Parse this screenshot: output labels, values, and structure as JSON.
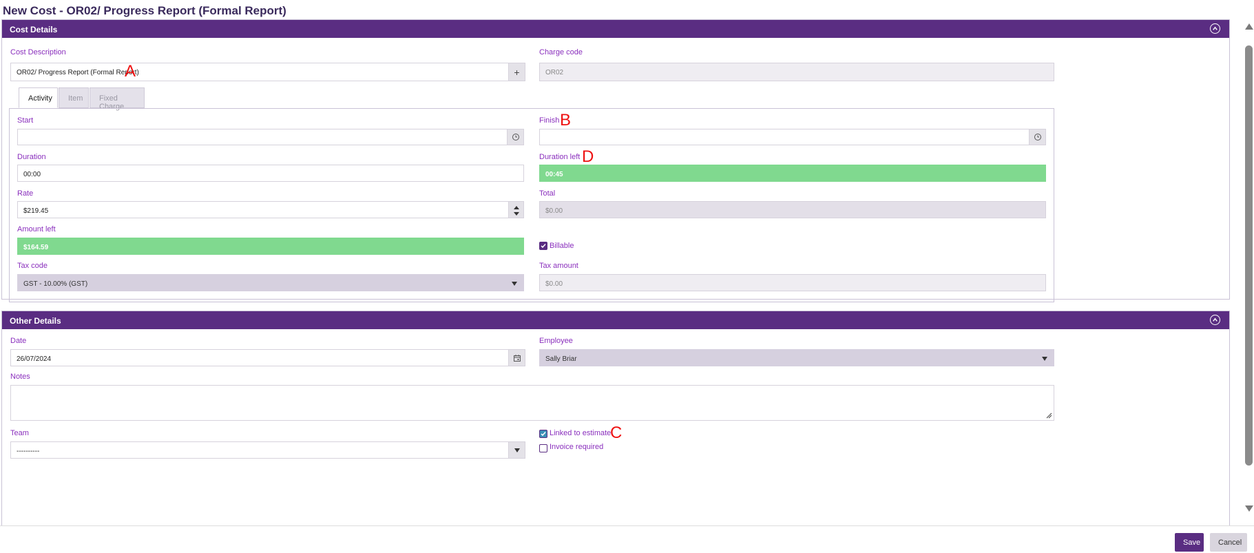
{
  "page": {
    "title": "New Cost - OR02/ Progress Report (Formal Report)"
  },
  "cost_details": {
    "header": "Cost Details",
    "cost_description": {
      "label": "Cost Description",
      "value": "OR02/ Progress Report (Formal Report)",
      "add_symbol": "+"
    },
    "charge_code": {
      "label": "Charge code",
      "value": "OR02"
    },
    "tabs": [
      {
        "label": "Activity"
      },
      {
        "label": "Item"
      },
      {
        "label": "Fixed Charge"
      }
    ],
    "start": {
      "label": "Start",
      "value": ""
    },
    "finish": {
      "label": "Finish",
      "value": ""
    },
    "duration": {
      "label": "Duration",
      "value": "00:00"
    },
    "duration_left": {
      "label": "Duration left",
      "value": "00:45"
    },
    "rate": {
      "label": "Rate",
      "value": "$219.45"
    },
    "total": {
      "label": "Total",
      "value": "$0.00"
    },
    "amount_left": {
      "label": "Amount left",
      "value": "$164.59"
    },
    "billable": {
      "label": "Billable",
      "checked": true
    },
    "tax_code": {
      "label": "Tax code",
      "value": "GST - 10.00% (GST)"
    },
    "tax_amount": {
      "label": "Tax amount",
      "value": "$0.00"
    }
  },
  "other_details": {
    "header": "Other Details",
    "date": {
      "label": "Date",
      "value": "26/07/2024"
    },
    "employee": {
      "label": "Employee",
      "value": "Sally Briar"
    },
    "notes": {
      "label": "Notes",
      "value": ""
    },
    "team": {
      "label": "Team",
      "value": "----------"
    },
    "linked_to_estimate": {
      "label": "Linked to estimate",
      "checked": true
    },
    "invoice_required": {
      "label": "Invoice required",
      "checked": false
    }
  },
  "annotations": {
    "a": "A",
    "b": "B",
    "c": "C",
    "d": "D"
  },
  "footer": {
    "save": "Save",
    "cancel": "Cancel"
  },
  "colors": {
    "brand": "#5a2d82",
    "label": "#8a2fbd",
    "green": "#80d98f",
    "annotation": "#ee1111"
  },
  "icons": [
    "chevron-up-icon",
    "plus-icon",
    "clock-icon",
    "calendar-icon",
    "caret-down-icon",
    "check-icon",
    "resize-grip-icon"
  ]
}
